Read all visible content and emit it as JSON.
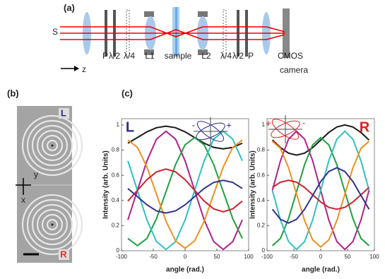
{
  "figure": {
    "panel_a": "(a)",
    "source": "S",
    "axis": "z",
    "labels": [
      "P",
      "λ/2",
      "λ/4",
      "L1",
      "sample",
      "L2",
      "λ/4",
      "λ/2",
      "P"
    ],
    "camera": [
      "CMOS",
      "camera"
    ],
    "panel_b": "(b)",
    "sem_top": "L",
    "sem_bottom": "R",
    "axis_y": "y",
    "axis_x": "x",
    "panel_c": "(c)"
  },
  "chart_data": [
    {
      "type": "line",
      "title": "L",
      "title_color": "#2a2a8c",
      "annotations": [
        "-",
        "+"
      ],
      "inset_color": "#2a2a8c",
      "xlabel": "angle (rad.)",
      "ylabel": "Intensity (arb. Units)",
      "x": [
        -90,
        -75,
        -60,
        -45,
        -30,
        -15,
        0,
        15,
        30,
        45,
        60,
        75,
        90
      ],
      "xlim": [
        -100,
        100
      ],
      "xticks": [
        -100,
        -50,
        0,
        50,
        100
      ],
      "ylim": [
        0,
        1.05
      ],
      "yticks": [
        0,
        0.2,
        0.4,
        0.6,
        0.8,
        1
      ],
      "series": [
        {
          "color": "#1a1a1a",
          "values": [
            0.855,
            0.9,
            0.945,
            0.978,
            0.99,
            0.978,
            0.945,
            0.9,
            0.855,
            0.822,
            0.81,
            0.822,
            0.855
          ]
        },
        {
          "color": "#b0208a",
          "values": [
            0.245,
            0.48,
            0.715,
            0.887,
            0.95,
            0.887,
            0.715,
            0.48,
            0.245,
            0.073,
            0.01,
            0.073,
            0.245
          ]
        },
        {
          "color": "#20a040",
          "values": [
            0.098,
            0.04,
            0.098,
            0.255,
            0.47,
            0.685,
            0.842,
            0.9,
            0.842,
            0.685,
            0.47,
            0.255,
            0.098
          ]
        },
        {
          "color": "#30c0c0",
          "values": [
            0.715,
            0.48,
            0.245,
            0.073,
            0.01,
            0.073,
            0.245,
            0.48,
            0.715,
            0.887,
            0.95,
            0.887,
            0.715
          ]
        },
        {
          "color": "#f09020",
          "values": [
            0.88,
            0.822,
            0.665,
            0.45,
            0.235,
            0.078,
            0.02,
            0.078,
            0.235,
            0.45,
            0.665,
            0.822,
            0.88
          ]
        },
        {
          "color": "#d02030",
          "values": [
            0.395,
            0.48,
            0.565,
            0.627,
            0.65,
            0.627,
            0.565,
            0.48,
            0.395,
            0.333,
            0.31,
            0.333,
            0.395
          ]
        },
        {
          "color": "#303090",
          "values": [
            0.495,
            0.43,
            0.365,
            0.317,
            0.3,
            0.317,
            0.365,
            0.43,
            0.495,
            0.543,
            0.56,
            0.543,
            0.495
          ]
        }
      ]
    },
    {
      "type": "line",
      "title": "R",
      "title_color": "#e02020",
      "annotations": [
        "+",
        "-"
      ],
      "inset_color": "#e02020",
      "xlabel": "angle (rad.)",
      "ylabel": "Intensity (arb. Units)",
      "x": [
        -90,
        -75,
        -60,
        -45,
        -30,
        -15,
        0,
        15,
        30,
        45,
        60,
        75,
        90
      ],
      "xlim": [
        -100,
        100
      ],
      "xticks": [
        -100,
        -50,
        0,
        50,
        100
      ],
      "ylim": [
        0,
        1.05
      ],
      "yticks": [
        0,
        0.2,
        0.4,
        0.6,
        0.8,
        1
      ],
      "series": [
        {
          "color": "#1a1a1a",
          "values": [
            0.88,
            0.82,
            0.776,
            0.76,
            0.776,
            0.82,
            0.88,
            0.94,
            0.984,
            1,
            0.984,
            0.94,
            0.88
          ]
        },
        {
          "color": "#b0208a",
          "values": [
            0.48,
            0.715,
            0.887,
            0.95,
            0.887,
            0.715,
            0.48,
            0.245,
            0.073,
            0.01,
            0.073,
            0.245,
            0.48
          ]
        },
        {
          "color": "#20a040",
          "values": [
            0.04,
            0.098,
            0.255,
            0.47,
            0.685,
            0.842,
            0.9,
            0.842,
            0.685,
            0.47,
            0.255,
            0.098,
            0.04
          ]
        },
        {
          "color": "#30c0c0",
          "values": [
            0.48,
            0.245,
            0.073,
            0.01,
            0.073,
            0.245,
            0.48,
            0.715,
            0.887,
            0.95,
            0.887,
            0.715,
            0.48
          ]
        },
        {
          "color": "#f09020",
          "values": [
            0.87,
            0.814,
            0.66,
            0.45,
            0.24,
            0.086,
            0.03,
            0.086,
            0.24,
            0.45,
            0.66,
            0.814,
            0.87
          ]
        },
        {
          "color": "#d02030",
          "values": [
            0.503,
            0.545,
            0.56,
            0.545,
            0.503,
            0.445,
            0.388,
            0.345,
            0.33,
            0.345,
            0.388,
            0.445,
            0.503
          ]
        },
        {
          "color": "#303090",
          "values": [
            0.33,
            0.25,
            0.22,
            0.25,
            0.33,
            0.44,
            0.55,
            0.63,
            0.66,
            0.63,
            0.55,
            0.44,
            0.33
          ]
        }
      ]
    }
  ]
}
